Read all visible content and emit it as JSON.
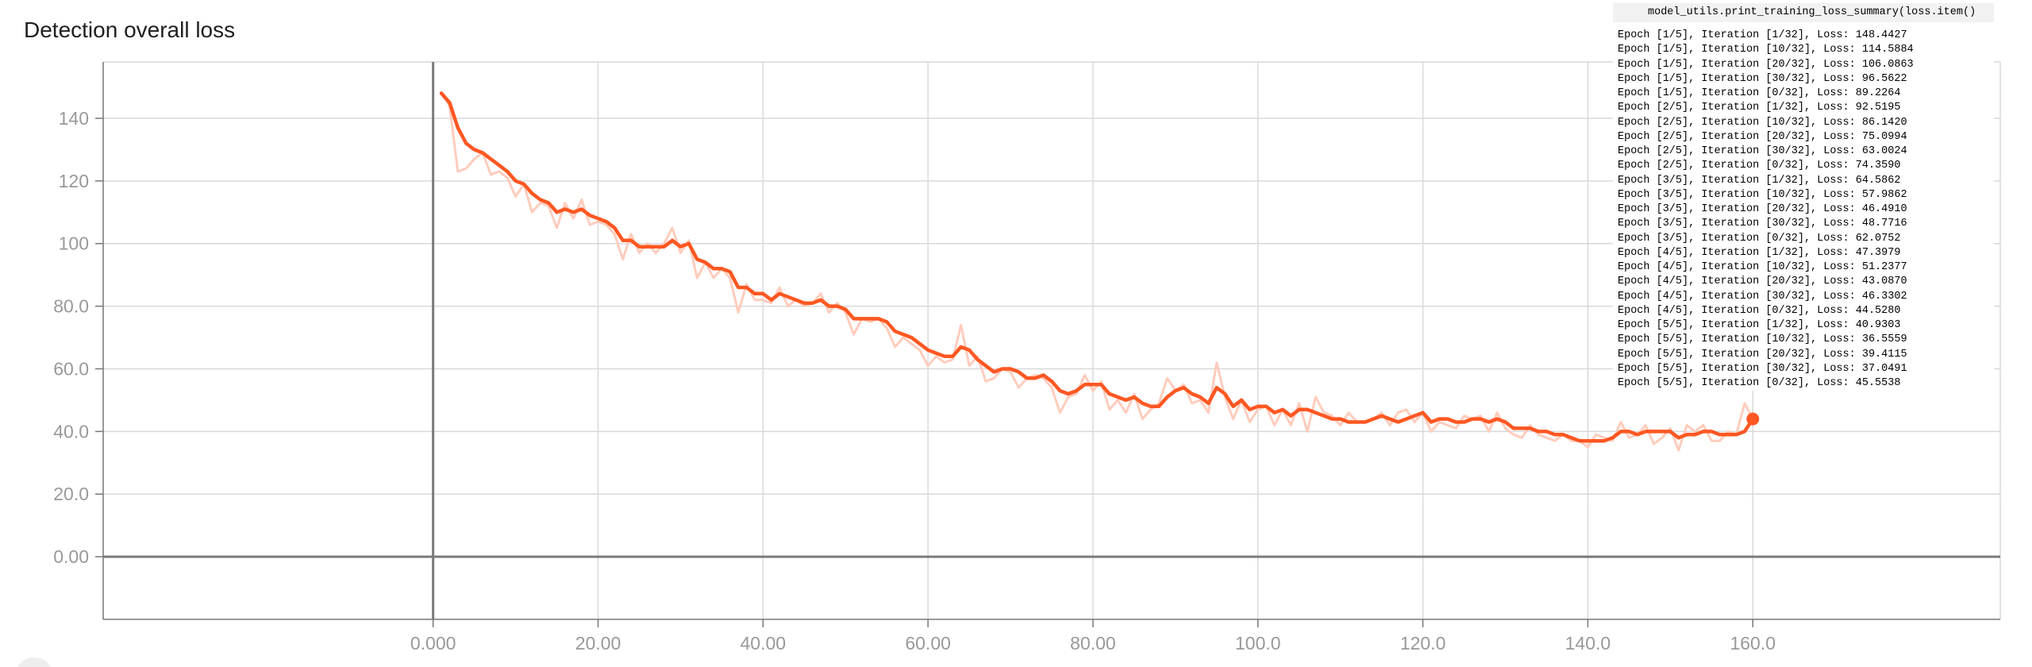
{
  "chart_data": {
    "type": "line",
    "title": "Detection overall loss",
    "xlabel": "",
    "ylabel": "",
    "xlim": [
      -40,
      190
    ],
    "ylim": [
      -20,
      158
    ],
    "x_ticks": [
      {
        "value": 0,
        "label": "0.000"
      },
      {
        "value": 20,
        "label": "20.00"
      },
      {
        "value": 40,
        "label": "40.00"
      },
      {
        "value": 60,
        "label": "60.00"
      },
      {
        "value": 80,
        "label": "80.00"
      },
      {
        "value": 100,
        "label": "100.0"
      },
      {
        "value": 120,
        "label": "120.0"
      },
      {
        "value": 140,
        "label": "140.0"
      },
      {
        "value": 160,
        "label": "160.0"
      }
    ],
    "y_ticks": [
      {
        "value": 0,
        "label": "0.00"
      },
      {
        "value": 20,
        "label": "20.0"
      },
      {
        "value": 40,
        "label": "40.0"
      },
      {
        "value": 60,
        "label": "60.0"
      },
      {
        "value": 80,
        "label": "80.0"
      },
      {
        "value": 100,
        "label": "100"
      },
      {
        "value": 120,
        "label": "120"
      },
      {
        "value": 140,
        "label": "140"
      }
    ],
    "grid": true,
    "legend": "none",
    "colors": {
      "smoothed": "#ff5722",
      "raw": "#ffccbc",
      "grid": "#d9d9d9",
      "axis": "#777777",
      "zero_line": "#7a7a7a",
      "tick_label": "#999999"
    },
    "series": [
      {
        "role": "raw",
        "x": [
          1,
          2,
          3,
          4,
          5,
          6,
          7,
          8,
          9,
          10,
          11,
          12,
          13,
          14,
          15,
          16,
          17,
          18,
          19,
          20,
          21,
          22,
          23,
          24,
          25,
          26,
          27,
          28,
          29,
          30,
          31,
          32,
          33,
          34,
          35,
          36,
          37,
          38,
          39,
          40,
          41,
          42,
          43,
          44,
          45,
          46,
          47,
          48,
          49,
          50,
          51,
          52,
          53,
          54,
          55,
          56,
          57,
          58,
          59,
          60,
          61,
          62,
          63,
          64,
          65,
          66,
          67,
          68,
          69,
          70,
          71,
          72,
          73,
          74,
          75,
          76,
          77,
          78,
          79,
          80,
          81,
          82,
          83,
          84,
          85,
          86,
          87,
          88,
          89,
          90,
          91,
          92,
          93,
          94,
          95,
          96,
          97,
          98,
          99,
          100,
          101,
          102,
          103,
          104,
          105,
          106,
          107,
          108,
          109,
          110,
          111,
          112,
          113,
          114,
          115,
          116,
          117,
          118,
          119,
          120,
          121,
          122,
          123,
          124,
          125,
          126,
          127,
          128,
          129,
          130,
          131,
          132,
          133,
          134,
          135,
          136,
          137,
          138,
          139,
          140,
          141,
          142,
          143,
          144,
          145,
          146,
          147,
          148,
          149,
          150,
          151,
          152,
          153,
          154,
          155,
          156,
          157,
          158,
          159,
          160
        ],
        "y": [
          148,
          144,
          123,
          124,
          127,
          129,
          122,
          123,
          121,
          115,
          119,
          110,
          113,
          112,
          105,
          113,
          108,
          114,
          106,
          107,
          106,
          103,
          95,
          103,
          97,
          100,
          97,
          100,
          105,
          97,
          101,
          89,
          94,
          89,
          92,
          89,
          78,
          87,
          82,
          82,
          81,
          86,
          80,
          82,
          80,
          81,
          84,
          78,
          81,
          78,
          71,
          76,
          75,
          76,
          73,
          67,
          70,
          68,
          66,
          61,
          64,
          62,
          63,
          74,
          61,
          64,
          56,
          57,
          60,
          59,
          54,
          57,
          58,
          57,
          54,
          46,
          51,
          52,
          58,
          53,
          56,
          47,
          50,
          46,
          52,
          44,
          47,
          49,
          57,
          53,
          55,
          49,
          50,
          46,
          62,
          51,
          44,
          50,
          43,
          47,
          48,
          42,
          47,
          42,
          49,
          40,
          51,
          46,
          45,
          42,
          46,
          43,
          43,
          44,
          46,
          42,
          46,
          47,
          43,
          46,
          40,
          43,
          42,
          41,
          45,
          44,
          45,
          40,
          46,
          41,
          39,
          38,
          42,
          39,
          38,
          37,
          39,
          37,
          37,
          35,
          39,
          38,
          37,
          43,
          38,
          39,
          42,
          36,
          38,
          41,
          34,
          42,
          40,
          42,
          37,
          37,
          40,
          39,
          49,
          44
        ]
      },
      {
        "role": "smoothed",
        "x": [
          1,
          2,
          3,
          4,
          5,
          6,
          7,
          8,
          9,
          10,
          11,
          12,
          13,
          14,
          15,
          16,
          17,
          18,
          19,
          20,
          21,
          22,
          23,
          24,
          25,
          26,
          27,
          28,
          29,
          30,
          31,
          32,
          33,
          34,
          35,
          36,
          37,
          38,
          39,
          40,
          41,
          42,
          43,
          44,
          45,
          46,
          47,
          48,
          49,
          50,
          51,
          52,
          53,
          54,
          55,
          56,
          57,
          58,
          59,
          60,
          61,
          62,
          63,
          64,
          65,
          66,
          67,
          68,
          69,
          70,
          71,
          72,
          73,
          74,
          75,
          76,
          77,
          78,
          79,
          80,
          81,
          82,
          83,
          84,
          85,
          86,
          87,
          88,
          89,
          90,
          91,
          92,
          93,
          94,
          95,
          96,
          97,
          98,
          99,
          100,
          101,
          102,
          103,
          104,
          105,
          106,
          107,
          108,
          109,
          110,
          111,
          112,
          113,
          114,
          115,
          116,
          117,
          118,
          119,
          120,
          121,
          122,
          123,
          124,
          125,
          126,
          127,
          128,
          129,
          130,
          131,
          132,
          133,
          134,
          135,
          136,
          137,
          138,
          139,
          140,
          141,
          142,
          143,
          144,
          145,
          146,
          147,
          148,
          149,
          150,
          151,
          152,
          153,
          154,
          155,
          156,
          157,
          158,
          159,
          160
        ],
        "y": [
          148,
          145,
          137,
          132,
          130,
          129,
          127,
          125,
          123,
          120,
          119,
          116,
          114,
          113,
          110,
          111,
          110,
          111,
          109,
          108,
          107,
          105,
          101,
          101,
          99,
          99,
          99,
          99,
          101,
          99,
          100,
          95,
          94,
          92,
          92,
          91,
          86,
          86,
          84,
          84,
          82,
          84,
          83,
          82,
          81,
          81,
          82,
          80,
          80,
          79,
          76,
          76,
          76,
          76,
          75,
          72,
          71,
          70,
          68,
          66,
          65,
          64,
          64,
          67,
          66,
          63,
          61,
          59,
          60,
          60,
          59,
          57,
          57,
          58,
          56,
          53,
          52,
          53,
          55,
          55,
          55,
          52,
          51,
          50,
          51,
          49,
          48,
          48,
          51,
          53,
          54,
          52,
          51,
          49,
          54,
          52,
          48,
          50,
          47,
          48,
          48,
          46,
          47,
          45,
          47,
          47,
          46,
          45,
          44,
          44,
          43,
          43,
          43,
          44,
          45,
          44,
          43,
          44,
          45,
          46,
          43,
          44,
          44,
          43,
          43,
          44,
          44,
          43,
          44,
          43,
          41,
          41,
          41,
          40,
          40,
          39,
          39,
          38,
          37,
          37,
          37,
          37,
          38,
          40,
          40,
          39,
          40,
          40,
          40,
          40,
          38,
          39,
          39,
          40,
          40,
          39,
          39,
          39,
          40,
          44
        ]
      }
    ]
  },
  "log_panel": {
    "header": "model_utils.print_training_loss_summary(loss.item()",
    "lines": [
      "Epoch [1/5], Iteration [1/32], Loss: 148.4427",
      "Epoch [1/5], Iteration [10/32], Loss: 114.5884",
      "Epoch [1/5], Iteration [20/32], Loss: 106.0863",
      "Epoch [1/5], Iteration [30/32], Loss: 96.5622",
      "Epoch [1/5], Iteration [0/32], Loss: 89.2264",
      "Epoch [2/5], Iteration [1/32], Loss: 92.5195",
      "Epoch [2/5], Iteration [10/32], Loss: 86.1420",
      "Epoch [2/5], Iteration [20/32], Loss: 75.0994",
      "Epoch [2/5], Iteration [30/32], Loss: 63.0024",
      "Epoch [2/5], Iteration [0/32], Loss: 74.3590",
      "Epoch [3/5], Iteration [1/32], Loss: 64.5862",
      "Epoch [3/5], Iteration [10/32], Loss: 57.9862",
      "Epoch [3/5], Iteration [20/32], Loss: 46.4910",
      "Epoch [3/5], Iteration [30/32], Loss: 48.7716",
      "Epoch [3/5], Iteration [0/32], Loss: 62.0752",
      "Epoch [4/5], Iteration [1/32], Loss: 47.3979",
      "Epoch [4/5], Iteration [10/32], Loss: 51.2377",
      "Epoch [4/5], Iteration [20/32], Loss: 43.0870",
      "Epoch [4/5], Iteration [30/32], Loss: 46.3302",
      "Epoch [4/5], Iteration [0/32], Loss: 44.5280",
      "Epoch [5/5], Iteration [1/32], Loss: 40.9303",
      "Epoch [5/5], Iteration [10/32], Loss: 36.5559",
      "Epoch [5/5], Iteration [20/32], Loss: 39.4115",
      "Epoch [5/5], Iteration [30/32], Loss: 37.0491",
      "Epoch [5/5], Iteration [0/32], Loss: 45.5538"
    ]
  }
}
